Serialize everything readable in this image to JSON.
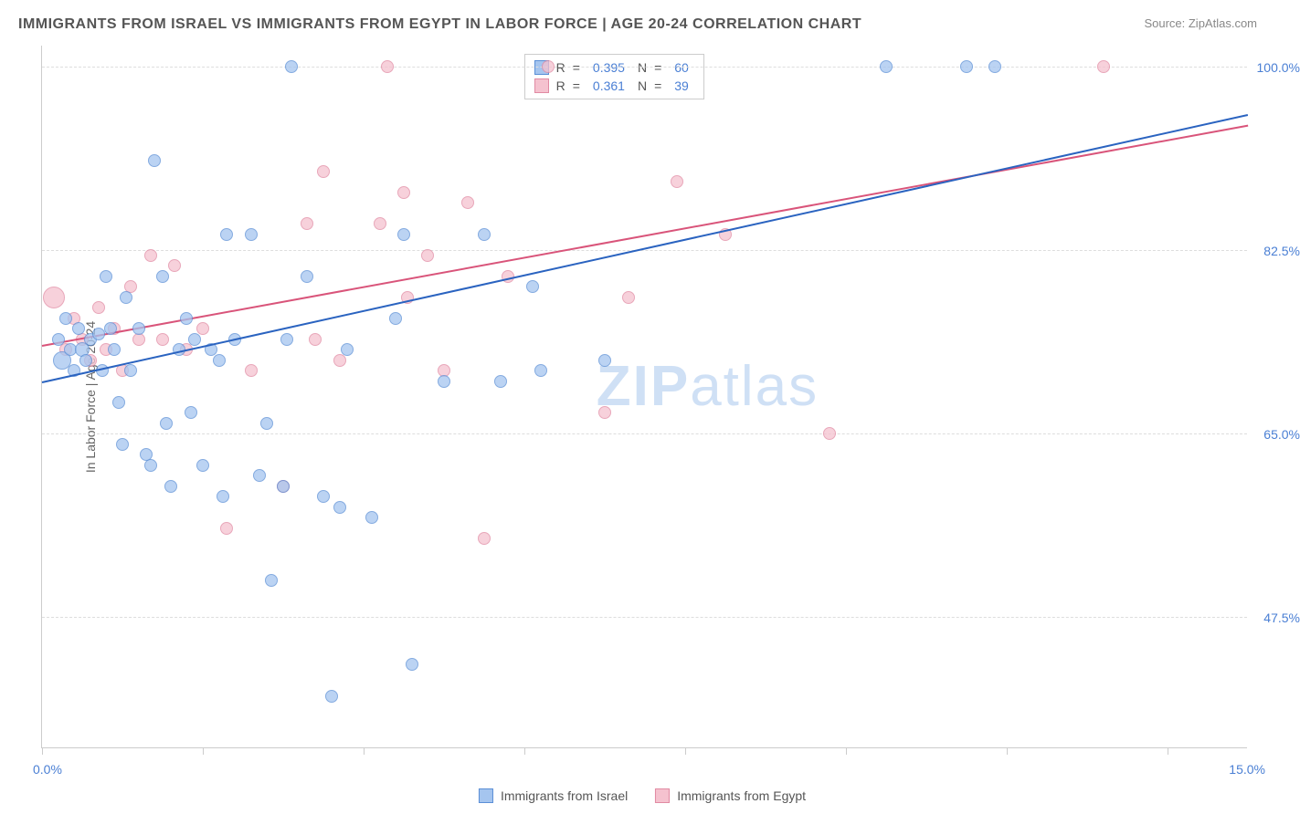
{
  "title": "IMMIGRANTS FROM ISRAEL VS IMMIGRANTS FROM EGYPT IN LABOR FORCE | AGE 20-24 CORRELATION CHART",
  "source": "Source: ZipAtlas.com",
  "yaxis_label": "In Labor Force | Age 20-24",
  "watermark_a": "ZIP",
  "watermark_b": "atlas",
  "x_axis": {
    "min": 0.0,
    "max": 15.0,
    "label_min": "0.0%",
    "label_max": "15.0%",
    "ticks": [
      0,
      2,
      4,
      6,
      8,
      10,
      12,
      14
    ]
  },
  "y_axis": {
    "min": 35.0,
    "max": 102.0,
    "gridlines": [
      47.5,
      65.0,
      82.5,
      100.0
    ],
    "labels": [
      "47.5%",
      "65.0%",
      "82.5%",
      "100.0%"
    ]
  },
  "series": {
    "israel": {
      "label": "Immigrants from Israel",
      "fill": "#a5c5ef",
      "stroke": "#5b8fd6",
      "line_color": "#2a63c0",
      "r_label": "R",
      "r_value": "0.395",
      "n_label": "N",
      "n_value": "60",
      "trend": {
        "x1": 0.0,
        "y1": 70.0,
        "x2": 15.0,
        "y2": 95.5
      },
      "points": [
        {
          "x": 0.2,
          "y": 74,
          "r": 7
        },
        {
          "x": 0.25,
          "y": 72,
          "r": 10
        },
        {
          "x": 0.3,
          "y": 76,
          "r": 7
        },
        {
          "x": 0.35,
          "y": 73,
          "r": 7
        },
        {
          "x": 0.4,
          "y": 71,
          "r": 7
        },
        {
          "x": 0.45,
          "y": 75,
          "r": 7
        },
        {
          "x": 0.5,
          "y": 73,
          "r": 8
        },
        {
          "x": 0.55,
          "y": 72,
          "r": 7
        },
        {
          "x": 0.6,
          "y": 74,
          "r": 7
        },
        {
          "x": 0.7,
          "y": 74.5,
          "r": 7
        },
        {
          "x": 0.75,
          "y": 71,
          "r": 7
        },
        {
          "x": 0.8,
          "y": 80,
          "r": 7
        },
        {
          "x": 0.85,
          "y": 75,
          "r": 7
        },
        {
          "x": 0.9,
          "y": 73,
          "r": 7
        },
        {
          "x": 0.95,
          "y": 68,
          "r": 7
        },
        {
          "x": 1.0,
          "y": 64,
          "r": 7
        },
        {
          "x": 1.05,
          "y": 78,
          "r": 7
        },
        {
          "x": 1.1,
          "y": 71,
          "r": 7
        },
        {
          "x": 1.2,
          "y": 75,
          "r": 7
        },
        {
          "x": 1.3,
          "y": 63,
          "r": 7
        },
        {
          "x": 1.35,
          "y": 62,
          "r": 7
        },
        {
          "x": 1.4,
          "y": 91,
          "r": 7
        },
        {
          "x": 1.5,
          "y": 80,
          "r": 7
        },
        {
          "x": 1.55,
          "y": 66,
          "r": 7
        },
        {
          "x": 1.6,
          "y": 60,
          "r": 7
        },
        {
          "x": 1.7,
          "y": 73,
          "r": 7
        },
        {
          "x": 1.8,
          "y": 76,
          "r": 7
        },
        {
          "x": 1.85,
          "y": 67,
          "r": 7
        },
        {
          "x": 1.9,
          "y": 74,
          "r": 7
        },
        {
          "x": 2.0,
          "y": 62,
          "r": 7
        },
        {
          "x": 2.1,
          "y": 73,
          "r": 7
        },
        {
          "x": 2.2,
          "y": 72,
          "r": 7
        },
        {
          "x": 2.25,
          "y": 59,
          "r": 7
        },
        {
          "x": 2.3,
          "y": 84,
          "r": 7
        },
        {
          "x": 2.4,
          "y": 74,
          "r": 7
        },
        {
          "x": 2.6,
          "y": 84,
          "r": 7
        },
        {
          "x": 2.7,
          "y": 61,
          "r": 7
        },
        {
          "x": 2.8,
          "y": 66,
          "r": 7
        },
        {
          "x": 2.85,
          "y": 51,
          "r": 7
        },
        {
          "x": 3.0,
          "y": 60,
          "r": 7
        },
        {
          "x": 3.05,
          "y": 74,
          "r": 7
        },
        {
          "x": 3.1,
          "y": 100,
          "r": 7
        },
        {
          "x": 3.3,
          "y": 80,
          "r": 7
        },
        {
          "x": 3.5,
          "y": 59,
          "r": 7
        },
        {
          "x": 3.6,
          "y": 40,
          "r": 7
        },
        {
          "x": 3.7,
          "y": 58,
          "r": 7
        },
        {
          "x": 3.8,
          "y": 73,
          "r": 7
        },
        {
          "x": 4.1,
          "y": 57,
          "r": 7
        },
        {
          "x": 4.4,
          "y": 76,
          "r": 7
        },
        {
          "x": 4.5,
          "y": 84,
          "r": 7
        },
        {
          "x": 4.6,
          "y": 43,
          "r": 7
        },
        {
          "x": 5.0,
          "y": 70,
          "r": 7
        },
        {
          "x": 5.5,
          "y": 84,
          "r": 7
        },
        {
          "x": 5.7,
          "y": 70,
          "r": 7
        },
        {
          "x": 6.1,
          "y": 79,
          "r": 7
        },
        {
          "x": 6.2,
          "y": 71,
          "r": 7
        },
        {
          "x": 7.0,
          "y": 72,
          "r": 7
        },
        {
          "x": 11.5,
          "y": 100,
          "r": 7
        },
        {
          "x": 11.85,
          "y": 100,
          "r": 7
        },
        {
          "x": 10.5,
          "y": 100,
          "r": 7
        }
      ]
    },
    "egypt": {
      "label": "Immigrants from Egypt",
      "fill": "#f5c2cf",
      "stroke": "#e18aa3",
      "line_color": "#d9547a",
      "r_label": "R",
      "r_value": "0.361",
      "n_label": "N",
      "n_value": "39",
      "trend": {
        "x1": 0.0,
        "y1": 73.5,
        "x2": 15.0,
        "y2": 94.5
      },
      "points": [
        {
          "x": 0.15,
          "y": 78,
          "r": 12
        },
        {
          "x": 0.3,
          "y": 73,
          "r": 7
        },
        {
          "x": 0.4,
          "y": 76,
          "r": 7
        },
        {
          "x": 0.5,
          "y": 74,
          "r": 7
        },
        {
          "x": 0.6,
          "y": 72,
          "r": 7
        },
        {
          "x": 0.7,
          "y": 77,
          "r": 7
        },
        {
          "x": 0.8,
          "y": 73,
          "r": 7
        },
        {
          "x": 0.9,
          "y": 75,
          "r": 7
        },
        {
          "x": 1.0,
          "y": 71,
          "r": 7
        },
        {
          "x": 1.1,
          "y": 79,
          "r": 7
        },
        {
          "x": 1.2,
          "y": 74,
          "r": 7
        },
        {
          "x": 1.35,
          "y": 82,
          "r": 7
        },
        {
          "x": 1.5,
          "y": 74,
          "r": 7
        },
        {
          "x": 1.65,
          "y": 81,
          "r": 7
        },
        {
          "x": 1.8,
          "y": 73,
          "r": 7
        },
        {
          "x": 2.0,
          "y": 75,
          "r": 7
        },
        {
          "x": 2.3,
          "y": 56,
          "r": 7
        },
        {
          "x": 2.6,
          "y": 71,
          "r": 7
        },
        {
          "x": 3.0,
          "y": 60,
          "r": 7
        },
        {
          "x": 3.3,
          "y": 85,
          "r": 7
        },
        {
          "x": 3.4,
          "y": 74,
          "r": 7
        },
        {
          "x": 3.5,
          "y": 90,
          "r": 7
        },
        {
          "x": 3.7,
          "y": 72,
          "r": 7
        },
        {
          "x": 4.2,
          "y": 85,
          "r": 7
        },
        {
          "x": 4.3,
          "y": 100,
          "r": 7
        },
        {
          "x": 4.5,
          "y": 88,
          "r": 7
        },
        {
          "x": 4.55,
          "y": 78,
          "r": 7
        },
        {
          "x": 4.8,
          "y": 82,
          "r": 7
        },
        {
          "x": 5.0,
          "y": 71,
          "r": 7
        },
        {
          "x": 5.3,
          "y": 87,
          "r": 7
        },
        {
          "x": 5.5,
          "y": 55,
          "r": 7
        },
        {
          "x": 5.8,
          "y": 80,
          "r": 7
        },
        {
          "x": 6.3,
          "y": 100,
          "r": 7
        },
        {
          "x": 7.0,
          "y": 67,
          "r": 7
        },
        {
          "x": 7.3,
          "y": 78,
          "r": 7
        },
        {
          "x": 7.9,
          "y": 89,
          "r": 7
        },
        {
          "x": 8.5,
          "y": 84,
          "r": 7
        },
        {
          "x": 9.8,
          "y": 65,
          "r": 7
        },
        {
          "x": 13.2,
          "y": 100,
          "r": 7
        }
      ]
    }
  }
}
